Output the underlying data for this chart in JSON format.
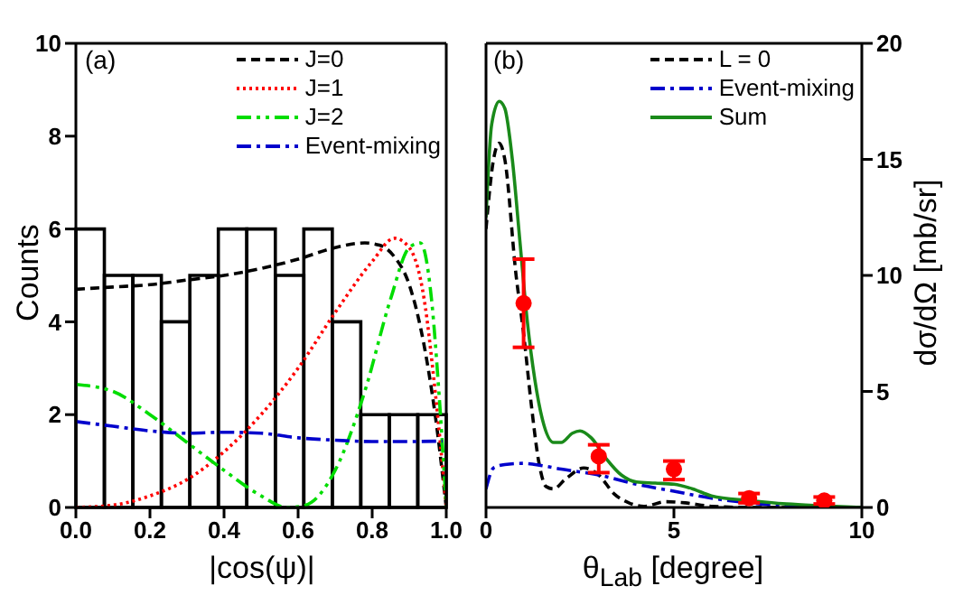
{
  "chart_data": [
    {
      "type": "histogram",
      "xlabel": "|cos(ψ)|",
      "ylabel": "Counts",
      "annotations": [
        "(a)"
      ],
      "legend": "top right",
      "bins": [
        0,
        0.0769,
        0.1538,
        0.2308,
        0.3077,
        0.3846,
        0.4615,
        0.5385,
        0.6154,
        0.6923,
        0.7692,
        0.8462,
        0.9231,
        1
      ],
      "values": [
        6,
        5,
        5,
        4,
        5,
        6,
        6,
        5,
        6,
        4,
        2,
        2,
        2
      ],
      "color": "#000000",
      "xlim": [
        0,
        1
      ],
      "xticks": [
        {
          "value": 0,
          "label": "0.0"
        },
        0.2,
        0.4,
        0.6,
        0.8,
        {
          "value": 1,
          "label": "1.0"
        }
      ],
      "ylim": [
        0,
        10
      ],
      "yticks": [
        0,
        2,
        4,
        6,
        8,
        10
      ],
      "series": [
        {
          "name": "J=0",
          "type": "line",
          "color": "#000000",
          "line_style": "dashed",
          "marker": "none",
          "x": [
            0,
            0.1,
            0.2,
            0.3,
            0.4,
            0.5,
            0.6,
            0.7,
            0.78,
            0.82,
            0.86,
            0.9,
            0.94,
            0.97,
            1
          ],
          "values": [
            4.7,
            4.75,
            4.8,
            4.9,
            5.0,
            5.15,
            5.35,
            5.6,
            5.7,
            5.65,
            5.4,
            4.8,
            3.5,
            2.0,
            0
          ]
        },
        {
          "name": "J=1",
          "type": "line",
          "color": "#ff0000",
          "line_style": "dotted",
          "marker": "none",
          "x": [
            0,
            0.1,
            0.2,
            0.3,
            0.4,
            0.5,
            0.6,
            0.7,
            0.8,
            0.86,
            0.9,
            0.94,
            0.97,
            1
          ],
          "values": [
            0,
            0.05,
            0.25,
            0.6,
            1.2,
            2.0,
            3.0,
            4.2,
            5.3,
            5.8,
            5.6,
            4.5,
            2.5,
            0
          ]
        },
        {
          "name": "J=2",
          "type": "line",
          "color": "#00dd00",
          "line_style": "dashdotdot",
          "marker": "none",
          "x": [
            0,
            0.1,
            0.2,
            0.3,
            0.4,
            0.5,
            0.57,
            0.62,
            0.7,
            0.78,
            0.85,
            0.9,
            0.93,
            0.96,
            0.98,
            1
          ],
          "values": [
            2.65,
            2.5,
            2.0,
            1.4,
            0.8,
            0.25,
            0,
            0.05,
            0.8,
            2.5,
            4.5,
            5.6,
            5.7,
            4.5,
            2.5,
            0
          ]
        },
        {
          "name": "Event-mixing",
          "type": "line",
          "color": "#0000cc",
          "line_style": "dashdot",
          "marker": "none",
          "x": [
            0,
            0.1,
            0.2,
            0.3,
            0.4,
            0.5,
            0.6,
            0.7,
            0.8,
            0.9,
            0.99
          ],
          "values": [
            1.85,
            1.75,
            1.65,
            1.6,
            1.62,
            1.6,
            1.5,
            1.45,
            1.42,
            1.42,
            1.43
          ]
        }
      ]
    },
    {
      "type": "line",
      "xlabel": "θ$_{Lab}$ [degree]",
      "y2label": "dσ/dΩ [mb/sr]",
      "annotations": [
        "(b)"
      ],
      "legend": "top right",
      "xlim": [
        0,
        10
      ],
      "xticks": [
        0,
        5,
        10
      ],
      "y2lim": [
        0,
        20
      ],
      "y2ticks": [
        0,
        5,
        10,
        15,
        20
      ],
      "series": [
        {
          "name": "L = 0",
          "type": "line",
          "axis": "y2",
          "color": "#000000",
          "line_style": "dashed",
          "marker": "none",
          "x": [
            0,
            0.2,
            0.35,
            0.5,
            0.8,
            1.0,
            1.2,
            1.4,
            1.6,
            1.8,
            2.1,
            2.6,
            3.0,
            3.4,
            3.8,
            4.2,
            4.8,
            5.3,
            6,
            7,
            10
          ],
          "values": [
            12.0,
            15,
            15.7,
            15,
            10,
            7.5,
            4.5,
            2.0,
            0.9,
            0.8,
            1.2,
            1.7,
            1.4,
            0.6,
            0.2,
            0.05,
            0.25,
            0.2,
            0.05,
            0,
            0
          ]
        },
        {
          "name": "Event-mixing",
          "type": "line",
          "axis": "y2",
          "color": "#0000cc",
          "line_style": "dashdot",
          "marker": "none",
          "x": [
            0,
            0.2,
            0.5,
            1.0,
            1.5,
            2,
            3,
            4,
            5,
            6,
            7,
            8,
            9
          ],
          "values": [
            0.8,
            1.7,
            1.85,
            1.9,
            1.8,
            1.65,
            1.4,
            1.0,
            0.7,
            0.4,
            0.2,
            0.05,
            0
          ]
        },
        {
          "name": "Sum",
          "type": "line",
          "axis": "y2",
          "color": "#1a8a1a",
          "line_style": "solid",
          "marker": "none",
          "x": [
            0,
            0.15,
            0.35,
            0.5,
            0.7,
            0.9,
            1.1,
            1.3,
            1.5,
            1.8,
            2.0,
            2.3,
            2.5,
            2.8,
            3.2,
            3.6,
            4.0,
            4.5,
            5.0,
            5.5,
            6,
            7,
            8,
            9,
            10
          ],
          "values": [
            12.5,
            16.5,
            17.5,
            17.2,
            15,
            11.5,
            8,
            5.5,
            3.8,
            2.8,
            2.8,
            3.2,
            3.3,
            3.0,
            2.1,
            1.4,
            1.1,
            1.05,
            1.0,
            0.8,
            0.5,
            0.3,
            0.15,
            0.07,
            0
          ]
        },
        {
          "type": "scatter",
          "axis": "y2",
          "color": "#ff0000",
          "marker": "circle",
          "x": [
            1,
            3,
            5,
            7,
            9
          ],
          "values": [
            8.8,
            2.2,
            1.65,
            0.4,
            0.3
          ],
          "errors": [
            [
              6.9,
              10.7
            ],
            [
              1.5,
              2.7
            ],
            [
              1.2,
              2.0
            ],
            [
              0.2,
              0.6
            ],
            [
              0.15,
              0.45
            ]
          ]
        }
      ]
    }
  ]
}
